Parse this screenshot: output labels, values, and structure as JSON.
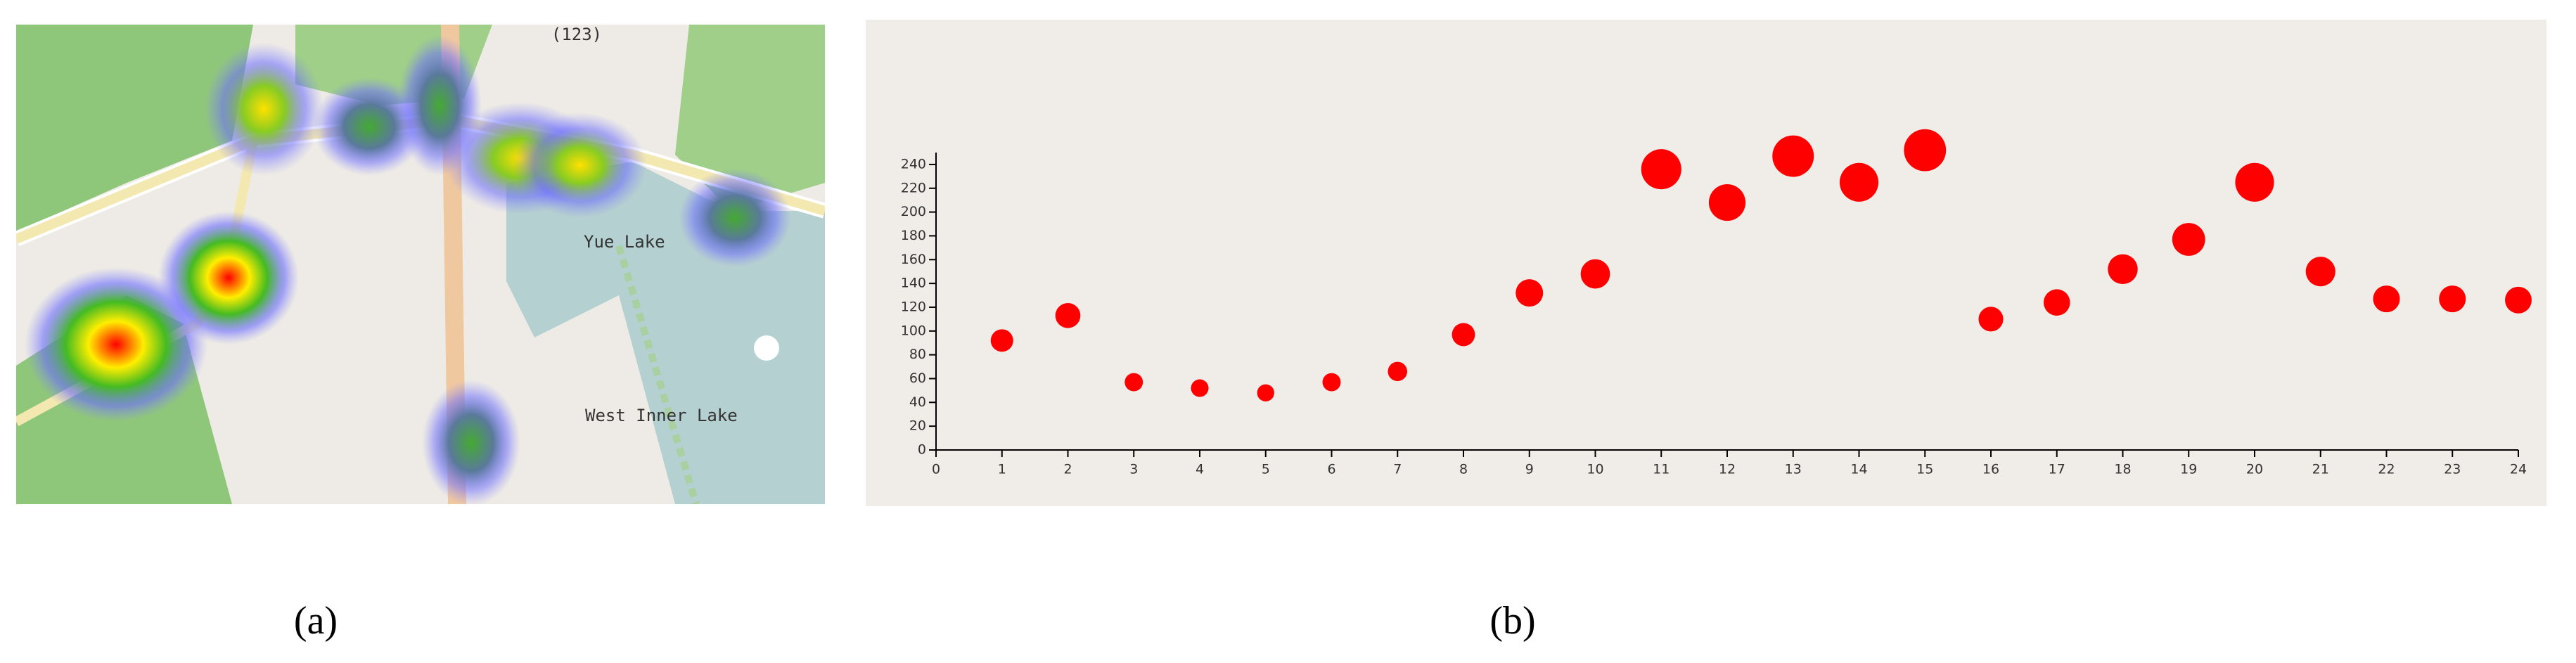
{
  "map": {
    "labels": [
      "(123)",
      "Yue Lake",
      "West Inner Lake"
    ]
  },
  "captions": [
    "(a)",
    "(b)"
  ],
  "chart_data": {
    "type": "scatter",
    "color": "#ff0000",
    "x": [
      1,
      2,
      3,
      4,
      5,
      6,
      7,
      8,
      9,
      10,
      11,
      12,
      13,
      14,
      15,
      16,
      17,
      18,
      19,
      20,
      21,
      22,
      23,
      24
    ],
    "values": [
      92,
      113,
      57,
      52,
      48,
      57,
      66,
      97,
      132,
      148,
      236,
      208,
      247,
      225,
      252,
      110,
      124,
      152,
      177,
      225,
      150,
      127,
      127,
      126
    ],
    "xlim": [
      0,
      24
    ],
    "xticks": [
      0,
      1,
      2,
      3,
      4,
      5,
      6,
      7,
      8,
      9,
      10,
      11,
      12,
      13,
      14,
      15,
      16,
      17,
      18,
      19,
      20,
      21,
      22,
      23,
      24
    ],
    "ylim": [
      0,
      250
    ],
    "yticks": [
      0,
      20,
      40,
      60,
      80,
      100,
      120,
      140,
      160,
      180,
      200,
      220,
      240
    ]
  }
}
